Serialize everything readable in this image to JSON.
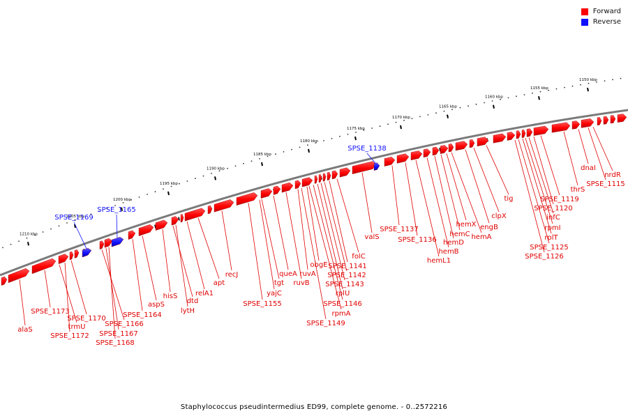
{
  "legend": [
    {
      "label": "Forward",
      "color": "#ff0000"
    },
    {
      "label": "Reverse",
      "color": "#1010ff"
    }
  ],
  "colors": {
    "forward": "#ff0000",
    "reverse": "#1010ff",
    "backbone": "#7a7a7a"
  },
  "caption": "Staphylococcus pseudintermedius ED99, complete genome. - 0..2572216",
  "ruler": [
    {
      "kbp": 1150,
      "label": "1150 kbp"
    },
    {
      "kbp": 1155,
      "label": "1155 kbp"
    },
    {
      "kbp": 1160,
      "label": "1160 kbp"
    },
    {
      "kbp": 1165,
      "label": "1165 kbp"
    },
    {
      "kbp": 1170,
      "label": "1170 kbp"
    },
    {
      "kbp": 1175,
      "label": "1175 kbp"
    },
    {
      "kbp": 1180,
      "label": "1180 kbp"
    },
    {
      "kbp": 1185,
      "label": "1185 kbp"
    },
    {
      "kbp": 1190,
      "label": "1190 kbp"
    },
    {
      "kbp": 1195,
      "label": "1195 kbp"
    },
    {
      "kbp": 1200,
      "label": "1200 kbp"
    },
    {
      "kbp": 1205,
      "label": "1205 kbp"
    },
    {
      "kbp": 1210,
      "label": "1210 kbp"
    }
  ],
  "reverse_genes": [
    "SPSE_1138",
    "SPSE_1165",
    "SPSE_1169"
  ],
  "forward_genes": [
    "alaS",
    "SPSE_1173",
    "trmU",
    "SPSE_1172",
    "SPSE_1170",
    "SPSE_1166",
    "SPSE_1167",
    "SPSE_1168",
    "SPSE_1164",
    "aspS",
    "hisS",
    "dtd",
    "lytH",
    "relA1",
    "apt",
    "recJ",
    "SPSE_1155",
    "yajC",
    "tgt",
    "queA",
    "ruvB",
    "ruvA",
    "obgE",
    "SPSE_1149",
    "rpmA",
    "SPSE_1146",
    "rplU",
    "SPSE_1143",
    "SPSE_1142",
    "SPSE_1141",
    "folC",
    "valS",
    "SPSE_1137",
    "SPSE_1136",
    "hemL1",
    "hemB",
    "hemD",
    "hemC",
    "hemX",
    "hemA",
    "engB",
    "clpX",
    "tig",
    "SPSE_1126",
    "SPSE_1125",
    "rplT",
    "rpmI",
    "infC",
    "SPSE_1120",
    "SPSE_1119",
    "thrS",
    "dnaI",
    "SPSE_1115",
    "nrdR"
  ]
}
